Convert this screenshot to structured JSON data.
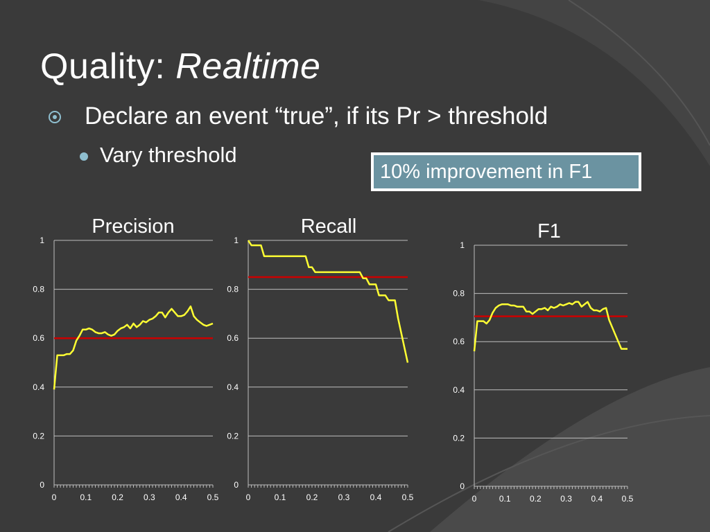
{
  "slide": {
    "title_plain": "Quality: ",
    "title_italic": "Realtime",
    "bullet_main": "Declare an event “true”, if its Pr > threshold",
    "bullet_sub": "Vary threshold",
    "callout": "10% improvement in F1"
  },
  "colors": {
    "series_line": "#ffff33",
    "baseline": "#cc0000",
    "gridline": "#bfbfbf",
    "bullet_accent": "#8fbfd0",
    "callout_fill": "#6b93a1"
  },
  "chart_data": [
    {
      "type": "line",
      "title": "Precision",
      "xlim": [
        0,
        0.5
      ],
      "ylim": [
        0,
        1
      ],
      "x_ticks": [
        "0",
        "0.1",
        "0.2",
        "0.3",
        "0.4",
        "0.5"
      ],
      "y_ticks": [
        "0",
        "0.2",
        "0.4",
        "0.6",
        "0.8",
        "1"
      ],
      "grid": true,
      "baseline": 0.6,
      "series": [
        {
          "x": [
            0,
            0.01,
            0.02,
            0.03,
            0.04,
            0.05,
            0.06,
            0.07,
            0.08,
            0.09,
            0.1,
            0.11,
            0.12,
            0.13,
            0.14,
            0.15,
            0.16,
            0.17,
            0.18,
            0.19,
            0.2,
            0.21,
            0.22,
            0.23,
            0.24,
            0.25,
            0.26,
            0.27,
            0.28,
            0.29,
            0.3,
            0.31,
            0.32,
            0.33,
            0.34,
            0.35,
            0.36,
            0.37,
            0.38,
            0.39,
            0.4,
            0.41,
            0.42,
            0.43,
            0.44,
            0.45,
            0.46,
            0.47,
            0.48,
            0.49,
            0.5
          ],
          "values": [
            0.39,
            0.53,
            0.53,
            0.53,
            0.535,
            0.535,
            0.55,
            0.59,
            0.61,
            0.635,
            0.635,
            0.64,
            0.635,
            0.625,
            0.62,
            0.62,
            0.625,
            0.615,
            0.61,
            0.615,
            0.63,
            0.64,
            0.645,
            0.655,
            0.64,
            0.66,
            0.645,
            0.655,
            0.67,
            0.665,
            0.675,
            0.68,
            0.69,
            0.705,
            0.705,
            0.685,
            0.705,
            0.72,
            0.705,
            0.69,
            0.69,
            0.695,
            0.71,
            0.73,
            0.69,
            0.675,
            0.665,
            0.655,
            0.65,
            0.655,
            0.66
          ]
        }
      ]
    },
    {
      "type": "line",
      "title": "Recall",
      "xlim": [
        0,
        0.5
      ],
      "ylim": [
        0,
        1
      ],
      "x_ticks": [
        "0",
        "0.1",
        "0.2",
        "0.3",
        "0.4",
        "0.5"
      ],
      "y_ticks": [
        "0",
        "0.2",
        "0.4",
        "0.6",
        "0.8",
        "1"
      ],
      "grid": true,
      "baseline": 0.85,
      "series": [
        {
          "x": [
            0,
            0.01,
            0.02,
            0.03,
            0.04,
            0.05,
            0.06,
            0.07,
            0.08,
            0.09,
            0.1,
            0.11,
            0.12,
            0.13,
            0.14,
            0.15,
            0.16,
            0.17,
            0.18,
            0.19,
            0.2,
            0.21,
            0.22,
            0.23,
            0.24,
            0.25,
            0.26,
            0.27,
            0.28,
            0.29,
            0.3,
            0.31,
            0.32,
            0.33,
            0.34,
            0.35,
            0.36,
            0.37,
            0.38,
            0.39,
            0.4,
            0.41,
            0.42,
            0.43,
            0.44,
            0.45,
            0.46,
            0.47,
            0.48,
            0.49,
            0.5
          ],
          "values": [
            1.0,
            0.98,
            0.98,
            0.98,
            0.98,
            0.935,
            0.935,
            0.935,
            0.935,
            0.935,
            0.935,
            0.935,
            0.935,
            0.935,
            0.935,
            0.935,
            0.935,
            0.935,
            0.935,
            0.89,
            0.89,
            0.87,
            0.87,
            0.87,
            0.87,
            0.87,
            0.87,
            0.87,
            0.87,
            0.87,
            0.87,
            0.87,
            0.87,
            0.87,
            0.87,
            0.87,
            0.845,
            0.845,
            0.82,
            0.82,
            0.82,
            0.775,
            0.775,
            0.775,
            0.755,
            0.755,
            0.755,
            0.68,
            0.62,
            0.56,
            0.5
          ]
        }
      ]
    },
    {
      "type": "line",
      "title": "F1",
      "xlim": [
        0,
        0.5
      ],
      "ylim": [
        0,
        1
      ],
      "x_ticks": [
        "0",
        "0.1",
        "0.2",
        "0.3",
        "0.4",
        "0.5"
      ],
      "y_ticks": [
        "0",
        "0.2",
        "0.4",
        "0.6",
        "0.8",
        "1"
      ],
      "grid": true,
      "baseline": 0.705,
      "series": [
        {
          "x": [
            0,
            0.01,
            0.02,
            0.03,
            0.04,
            0.05,
            0.06,
            0.07,
            0.08,
            0.09,
            0.1,
            0.11,
            0.12,
            0.13,
            0.14,
            0.15,
            0.16,
            0.17,
            0.18,
            0.19,
            0.2,
            0.21,
            0.22,
            0.23,
            0.24,
            0.25,
            0.26,
            0.27,
            0.28,
            0.29,
            0.3,
            0.31,
            0.32,
            0.33,
            0.34,
            0.35,
            0.36,
            0.37,
            0.38,
            0.39,
            0.4,
            0.41,
            0.42,
            0.43,
            0.44,
            0.45,
            0.46,
            0.47,
            0.48,
            0.49,
            0.5
          ],
          "values": [
            0.56,
            0.685,
            0.685,
            0.685,
            0.675,
            0.69,
            0.72,
            0.74,
            0.75,
            0.755,
            0.755,
            0.755,
            0.75,
            0.75,
            0.745,
            0.745,
            0.745,
            0.725,
            0.725,
            0.715,
            0.725,
            0.735,
            0.735,
            0.74,
            0.73,
            0.745,
            0.74,
            0.745,
            0.755,
            0.75,
            0.755,
            0.76,
            0.755,
            0.765,
            0.765,
            0.745,
            0.755,
            0.765,
            0.74,
            0.73,
            0.73,
            0.725,
            0.735,
            0.74,
            0.69,
            0.66,
            0.63,
            0.6,
            0.57,
            0.57,
            0.57
          ]
        }
      ]
    }
  ]
}
